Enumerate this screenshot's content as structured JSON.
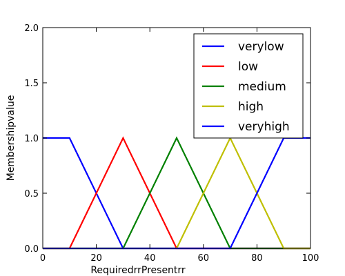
{
  "chart_data": {
    "type": "line",
    "title": "",
    "xlabel": "RequiredrrPresentrr",
    "ylabel": "Membershipvalue",
    "xlim": [
      0,
      100
    ],
    "ylim": [
      0,
      2
    ],
    "xticks": [
      "0",
      "20",
      "40",
      "60",
      "80",
      "100"
    ],
    "yticks": [
      "0.0",
      "0.5",
      "1.0",
      "1.5",
      "2.0"
    ],
    "grid": false,
    "legend_position": "top-right",
    "series": [
      {
        "name": "verylow",
        "color": "#0000ff",
        "x": [
          0,
          10,
          30,
          100
        ],
        "y": [
          1,
          1,
          0,
          0
        ]
      },
      {
        "name": "low",
        "color": "#ff0000",
        "x": [
          0,
          10,
          30,
          50,
          100
        ],
        "y": [
          0,
          0,
          1,
          0,
          0
        ]
      },
      {
        "name": "medium",
        "color": "#008000",
        "x": [
          0,
          30,
          50,
          70,
          100
        ],
        "y": [
          0,
          0,
          1,
          0,
          0
        ]
      },
      {
        "name": "high",
        "color": "#bfbf00",
        "x": [
          0,
          50,
          70,
          90,
          100
        ],
        "y": [
          0,
          0,
          1,
          0,
          0
        ]
      },
      {
        "name": "veryhigh",
        "color": "#0000ff",
        "x": [
          0,
          70,
          90,
          100
        ],
        "y": [
          0,
          0,
          1,
          1
        ]
      }
    ]
  }
}
